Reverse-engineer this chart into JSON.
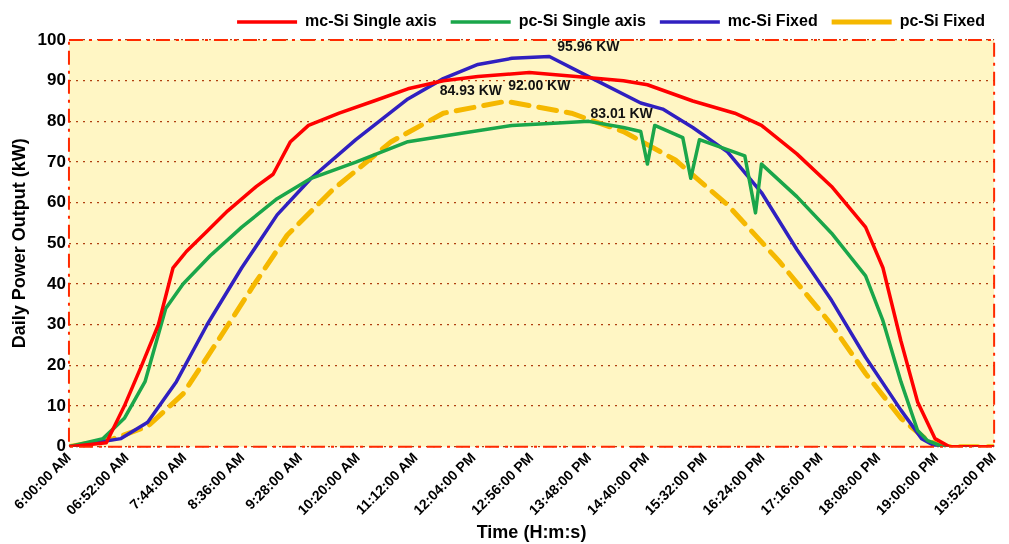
{
  "chart_data": {
    "type": "line",
    "xlabel": "Time (H:m:s)",
    "ylabel": "Daily Power Output (kW)",
    "legend": "top",
    "grid": "y",
    "marker": "none",
    "xlim": [
      6,
      19.8667
    ],
    "ylim": [
      0,
      100
    ],
    "yticks": [
      0,
      10,
      20,
      30,
      40,
      50,
      60,
      70,
      80,
      90,
      100
    ],
    "xticks": [
      {
        "value": 6,
        "label": "6:00:00 AM"
      },
      {
        "value": 6.8667,
        "label": "06:52:00 AM"
      },
      {
        "value": 7.7333,
        "label": "7:44:00 AM"
      },
      {
        "value": 8.6,
        "label": "8:36:00 AM"
      },
      {
        "value": 9.4667,
        "label": "9:28:00 AM"
      },
      {
        "value": 10.3333,
        "label": "10:20:00 AM"
      },
      {
        "value": 11.2,
        "label": "11:12:00 AM"
      },
      {
        "value": 12.0667,
        "label": "12:04:00 PM"
      },
      {
        "value": 12.9333,
        "label": "12:56:00 PM"
      },
      {
        "value": 13.8,
        "label": "13:48:00 PM"
      },
      {
        "value": 14.6667,
        "label": "14:40:00 PM"
      },
      {
        "value": 15.5333,
        "label": "15:32:00 PM"
      },
      {
        "value": 16.4,
        "label": "16:24:00 PM"
      },
      {
        "value": 17.2667,
        "label": "17:16:00 PM"
      },
      {
        "value": 18.1333,
        "label": "18:08:00 PM"
      },
      {
        "value": 19,
        "label": "19:00:00 PM"
      },
      {
        "value": 19.8667,
        "label": "19:52:00 PM"
      }
    ],
    "series": [
      {
        "name": "mc-Si Single axis",
        "color": "#ff0000",
        "line_style": "solid",
        "x": [
          6,
          6.56,
          6.83,
          7.09,
          7.34,
          7.56,
          7.76,
          8.07,
          8.38,
          8.81,
          9.06,
          9.32,
          9.59,
          10.05,
          10.57,
          11.08,
          11.61,
          12.13,
          12.9,
          13.6,
          14.31,
          14.67,
          15.35,
          15.98,
          16.38,
          16.91,
          17.43,
          17.94,
          18.2,
          18.47,
          18.72,
          18.98,
          19.2,
          19.8667
        ],
        "values": [
          0,
          1,
          10,
          20,
          30,
          44,
          48,
          53,
          58,
          64,
          67,
          75,
          79,
          82,
          85,
          88,
          90,
          91,
          92,
          91,
          90,
          89,
          85,
          82,
          79,
          72,
          64,
          54,
          44,
          26,
          11,
          2,
          0,
          0
        ]
      },
      {
        "name": "pc-Si Single axis",
        "color": "#1aa64a",
        "line_style": "solid",
        "x": [
          6,
          6.51,
          6.83,
          7.14,
          7.45,
          7.71,
          8.12,
          8.59,
          9.12,
          9.63,
          10.3,
          11.08,
          11.86,
          12.64,
          13.2,
          13.79,
          14.31,
          14.57,
          14.67,
          14.78,
          15.2,
          15.32,
          15.45,
          16.13,
          16.29,
          16.38,
          16.91,
          17.43,
          17.94,
          18.2,
          18.47,
          18.72,
          18.87,
          19.1,
          19.8667
        ],
        "values": [
          0,
          2,
          7,
          16,
          34,
          40,
          47,
          54,
          61,
          66,
          70,
          75,
          77,
          79,
          79.5,
          80,
          78.5,
          77.5,
          69.5,
          79,
          76,
          66,
          75.5,
          71.5,
          57.5,
          69.5,
          61.5,
          52.5,
          42,
          31,
          16,
          4,
          1.5,
          0,
          0
        ]
      },
      {
        "name": "mc-Si Fixed",
        "color": "#3020c0",
        "line_style": "solid",
        "x": [
          6,
          6.78,
          7.18,
          7.61,
          8.07,
          8.59,
          9.12,
          9.63,
          10.3,
          11.08,
          11.61,
          12.13,
          12.64,
          13.2,
          13.79,
          14.57,
          14.9,
          15.35,
          15.87,
          16.38,
          16.91,
          17.43,
          17.94,
          18.47,
          18.78,
          19,
          19.8667
        ],
        "values": [
          0,
          2,
          6,
          16,
          30,
          44,
          57,
          66,
          75.5,
          85.5,
          90.5,
          94,
          95.5,
          95.96,
          91,
          84.5,
          83.01,
          78.5,
          72.5,
          62.5,
          48.5,
          36,
          22,
          9,
          2,
          0,
          0
        ]
      },
      {
        "name": "pc-Si Fixed",
        "color": "#f5b800",
        "line_style": "dashed",
        "x": [
          6,
          6.67,
          7.18,
          7.71,
          8.23,
          8.74,
          9.27,
          9.94,
          10.83,
          11.61,
          12.55,
          13.53,
          14.31,
          15.09,
          15.87,
          16.65,
          17.43,
          17.94,
          18.47,
          18.87,
          19.1,
          19.8667
        ],
        "values": [
          0,
          2,
          5,
          13,
          26,
          39,
          52,
          63,
          75,
          82,
          84.93,
          82,
          77.5,
          70.5,
          59.5,
          45.5,
          30,
          18,
          7,
          1.5,
          0,
          0
        ]
      }
    ],
    "annotations": [
      {
        "text": "95.96 KW",
        "x": 13.2,
        "y": 95.96
      },
      {
        "text": "92.00 KW",
        "x": 12.9,
        "y": 92
      },
      {
        "text": "84.93 KW",
        "x": 12.55,
        "y": 84.93
      },
      {
        "text": "83.01 KW",
        "x": 14.9,
        "y": 83.01
      }
    ]
  }
}
